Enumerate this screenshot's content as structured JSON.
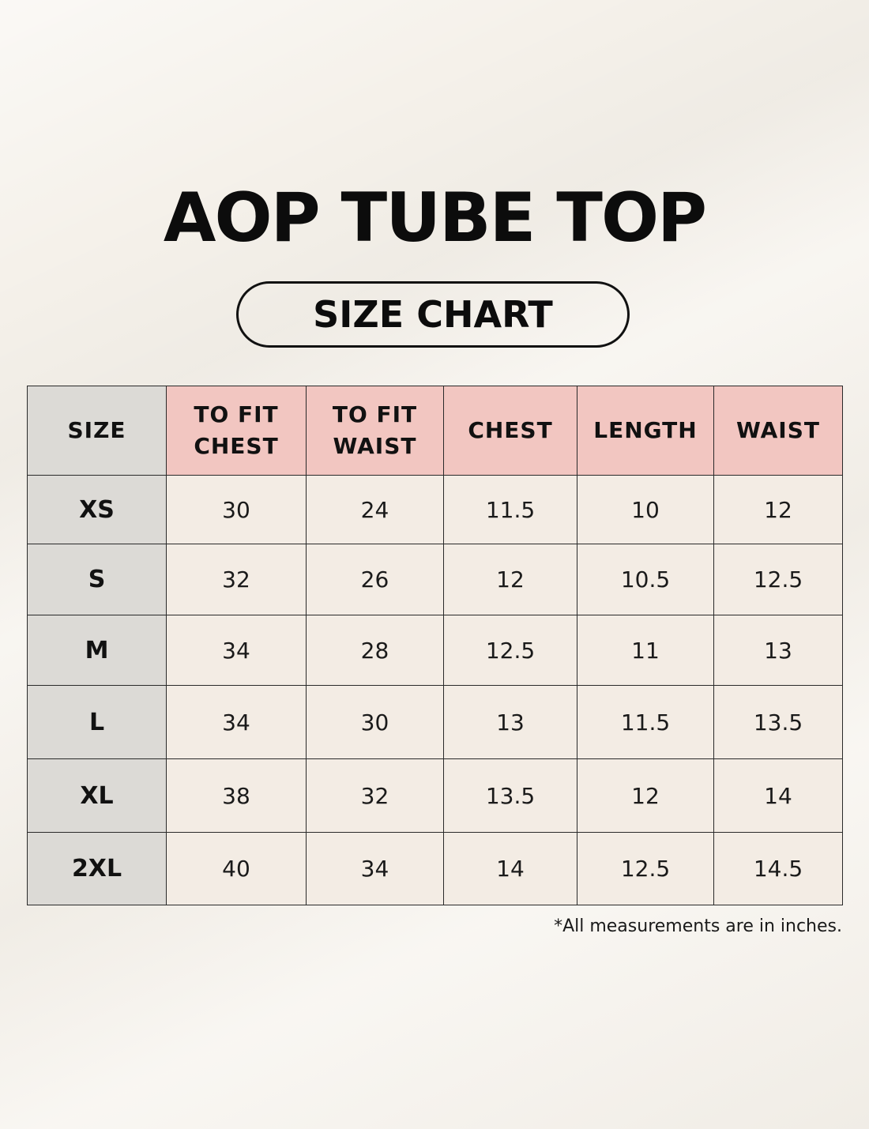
{
  "title": "AOP TUBE TOP",
  "subtitle": "SIZE CHART",
  "table": {
    "headers": [
      "SIZE",
      "TO FIT CHEST",
      "TO FIT WAIST",
      "CHEST",
      "LENGTH",
      "WAIST"
    ],
    "header_lines": [
      [
        "SIZE"
      ],
      [
        "TO FIT",
        "CHEST"
      ],
      [
        "TO FIT",
        "WAIST"
      ],
      [
        "CHEST"
      ],
      [
        "LENGTH"
      ],
      [
        "WAIST"
      ]
    ],
    "rows": [
      [
        "XS",
        "30",
        "24",
        "11.5",
        "10",
        "12"
      ],
      [
        "S",
        "32",
        "26",
        "12",
        "10.5",
        "12.5"
      ],
      [
        "M",
        "34",
        "28",
        "12.5",
        "11",
        "13"
      ],
      [
        "L",
        "34",
        "30",
        "13",
        "11.5",
        "13.5"
      ],
      [
        "XL",
        "38",
        "32",
        "13.5",
        "12",
        "14"
      ],
      [
        "2XL",
        "40",
        "34",
        "14",
        "12.5",
        "14.5"
      ]
    ]
  },
  "footnote": "*All measurements are in inches.",
  "colors": {
    "background": "#f5f1ea",
    "header_pink": "#f2c6c1",
    "size_column_gray": "#dcdad6",
    "cell_background": "#f3ece4",
    "text": "#111111"
  }
}
